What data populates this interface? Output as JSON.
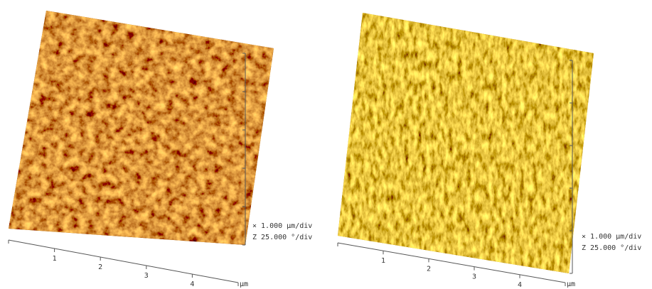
{
  "panels": [
    {
      "x_axis": {
        "ticks": [
          "1",
          "2",
          "3",
          "4"
        ],
        "unit": "µm"
      },
      "scale": {
        "x": "× 1.000 µm/div",
        "z": "Z 25.000 °/div"
      }
    },
    {
      "x_axis": {
        "ticks": [
          "1",
          "2",
          "3",
          "4"
        ],
        "unit": "µm"
      },
      "scale": {
        "x": "× 1.000 µm/div",
        "z": "Z 25.000 °/div"
      }
    }
  ]
}
